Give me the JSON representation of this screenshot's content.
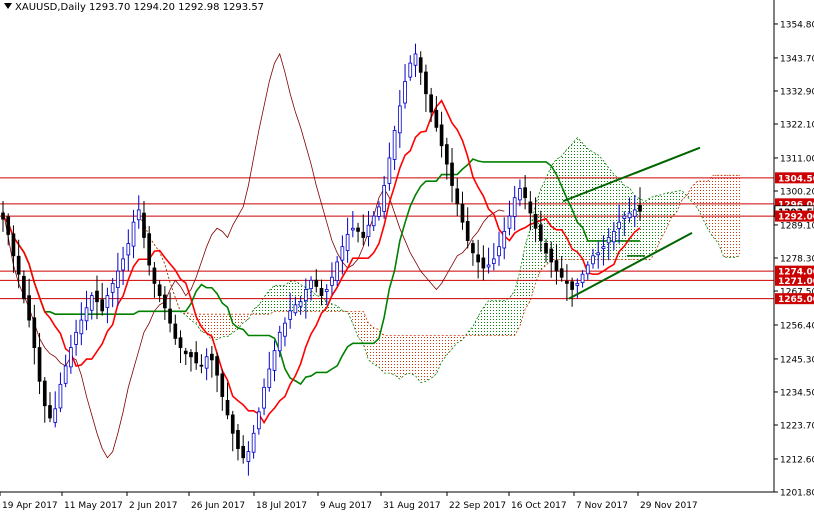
{
  "chart_data": {
    "type": "candlestick",
    "title": {
      "symbol": "XAUUSD,Daily",
      "ohlc": [
        "1293.70",
        "1294.20",
        "1292.98",
        "1293.57"
      ]
    },
    "y_axis": {
      "min": 1201.8,
      "max": 1361.0,
      "ticks": [
        "1354.80",
        "1343.70",
        "1332.90",
        "1322.10",
        "1311.00",
        "1300.20",
        "1289.10",
        "1278.30",
        "1267.50",
        "1256.40",
        "1245.30",
        "1234.50",
        "1223.70",
        "1212.60",
        "1201.80"
      ]
    },
    "x_axis": {
      "ticks": [
        "19 Apr 2017",
        "11 May 2017",
        "2 Jun 2017",
        "26 Jun 2017",
        "18 Jul 2017",
        "9 Aug 2017",
        "31 Aug 2017",
        "22 Sep 2017",
        "16 Oct 2017",
        "7 Nov 2017",
        "29 Nov 2017"
      ]
    },
    "levels": [
      {
        "value": 1304.5,
        "label": "1304.50"
      },
      {
        "value": 1296.0,
        "label": "1296.00"
      },
      {
        "value": 1293.57,
        "label": "1293.57"
      },
      {
        "value": 1292.0,
        "label": "1292.00"
      },
      {
        "value": 1274.0,
        "label": "1274.00"
      },
      {
        "value": 1271.0,
        "label": "1271.00"
      },
      {
        "value": 1265.0,
        "label": "1265.00"
      }
    ],
    "closes": [
      1291,
      1286,
      1279,
      1273,
      1265,
      1258,
      1249,
      1238,
      1230,
      1226,
      1229,
      1237,
      1243,
      1249,
      1254,
      1258,
      1262,
      1266,
      1264,
      1261,
      1266,
      1270,
      1274,
      1278,
      1283,
      1290,
      1294,
      1285,
      1276,
      1270,
      1266,
      1262,
      1257,
      1252,
      1249,
      1247,
      1246,
      1244,
      1243,
      1246,
      1245,
      1240,
      1233,
      1227,
      1221,
      1216,
      1213,
      1215,
      1221,
      1228,
      1236,
      1242,
      1248,
      1254,
      1257,
      1261,
      1263,
      1264,
      1268,
      1271,
      1269,
      1266,
      1268,
      1272,
      1277,
      1282,
      1286,
      1288,
      1287,
      1285,
      1289,
      1292,
      1295,
      1302,
      1311,
      1320,
      1328,
      1336,
      1342,
      1345,
      1339,
      1332,
      1326,
      1321,
      1315,
      1309,
      1302,
      1296,
      1290,
      1284,
      1280,
      1277,
      1275,
      1276,
      1278,
      1282,
      1287,
      1292,
      1298,
      1301,
      1298,
      1293,
      1288,
      1284,
      1280,
      1277,
      1274,
      1272,
      1270,
      1268,
      1270,
      1273,
      1276,
      1279,
      1280,
      1282,
      1285,
      1287,
      1290,
      1292,
      1293,
      1294,
      1293.57
    ],
    "channel": {
      "upper": [
        [
          1271.0,
          1297.5
        ],
        [
          1315.0,
          1315.0
        ]
      ],
      "lower": [
        [
          1271.0,
          1265.0
        ],
        [
          1315.0,
          1286.5
        ]
      ]
    },
    "colors": {
      "bull": "#0000cc",
      "bear": "#000000",
      "tenkan": "#ff0000",
      "kijun": "#008000",
      "chikou": "#800000",
      "cloud_bull": "#008000",
      "cloud_bear": "#cc3300",
      "level": "#cc0000",
      "trend": "#006400"
    }
  }
}
